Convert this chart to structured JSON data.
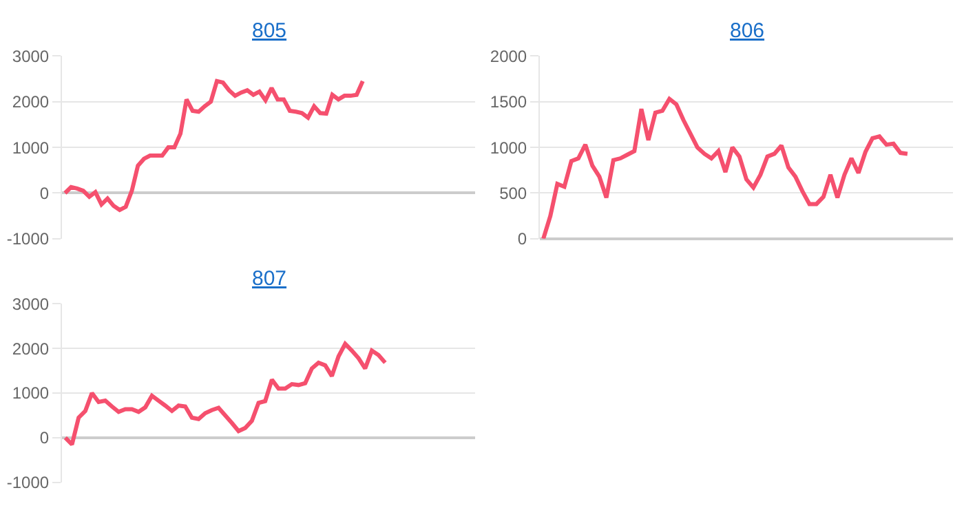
{
  "chart_data": [
    {
      "type": "line",
      "title": "805",
      "categories": [
        null,
        null,
        null,
        null,
        null,
        null,
        null,
        null,
        null,
        null,
        null,
        null,
        null,
        null,
        null,
        null,
        null,
        null,
        null,
        null,
        null,
        null,
        null,
        null,
        null,
        null,
        null,
        null,
        null,
        null,
        null,
        null,
        null,
        null,
        null,
        null,
        null,
        null,
        null,
        null,
        null,
        null,
        null,
        null,
        null,
        null,
        null,
        null,
        null,
        null,
        null,
        null,
        null,
        null,
        null,
        null,
        null,
        null,
        null,
        null,
        null,
        null,
        null,
        null,
        null,
        null,
        null,
        null
      ],
      "series": [
        {
          "color": "#f5506e",
          "values": [
            0,
            130,
            100,
            50,
            -80,
            20,
            -250,
            -120,
            -280,
            -370,
            -300,
            50,
            600,
            750,
            820,
            820,
            820,
            1000,
            1000,
            1300,
            2050,
            1800,
            1780,
            1900,
            2000,
            2450,
            2420,
            2250,
            2130,
            2200,
            2250,
            2150,
            2220,
            2030,
            2300,
            2050,
            2050,
            1800,
            1780,
            1750,
            1650,
            1900,
            1750,
            1740,
            2150,
            2050,
            2130,
            2130,
            2150,
            2450,
            null,
            null,
            null,
            null,
            null,
            null,
            null,
            null,
            null,
            null,
            null,
            null,
            null,
            null,
            null,
            null,
            null,
            null
          ]
        }
      ],
      "ylim": [
        -1000,
        3000
      ],
      "yticks": [
        -1000,
        0,
        1000,
        2000,
        3000
      ],
      "grid": "y",
      "tick_labels": "y",
      "marker": "none"
    },
    {
      "type": "line",
      "title": "806",
      "categories": [
        null,
        null,
        null,
        null,
        null,
        null,
        null,
        null,
        null,
        null,
        null,
        null,
        null,
        null,
        null,
        null,
        null,
        null,
        null,
        null,
        null,
        null,
        null,
        null,
        null,
        null,
        null,
        null,
        null,
        null,
        null,
        null,
        null,
        null,
        null,
        null,
        null,
        null,
        null,
        null,
        null,
        null,
        null,
        null,
        null,
        null,
        null,
        null,
        null,
        null,
        null,
        null,
        null,
        null,
        null,
        null,
        null,
        null,
        null
      ],
      "series": [
        {
          "color": "#f5506e",
          "values": [
            0,
            250,
            600,
            570,
            850,
            880,
            1030,
            800,
            680,
            450,
            860,
            880,
            920,
            960,
            1420,
            1080,
            1380,
            1400,
            1530,
            1470,
            1300,
            1150,
            1000,
            930,
            880,
            960,
            730,
            1000,
            900,
            650,
            560,
            700,
            900,
            930,
            1020,
            780,
            680,
            520,
            380,
            380,
            460,
            700,
            450,
            700,
            880,
            720,
            950,
            1100,
            1120,
            1030,
            1040,
            940,
            930,
            null,
            null,
            null,
            null,
            null,
            null
          ]
        }
      ],
      "ylim": [
        0,
        2000
      ],
      "yticks": [
        0,
        500,
        1000,
        1500,
        2000
      ],
      "grid": "y",
      "tick_labels": "y",
      "marker": "none"
    },
    {
      "type": "line",
      "title": "807",
      "categories": [
        null,
        null,
        null,
        null,
        null,
        null,
        null,
        null,
        null,
        null,
        null,
        null,
        null,
        null,
        null,
        null,
        null,
        null,
        null,
        null,
        null,
        null,
        null,
        null,
        null,
        null,
        null,
        null,
        null,
        null,
        null,
        null,
        null,
        null,
        null,
        null,
        null,
        null,
        null,
        null,
        null,
        null,
        null,
        null,
        null,
        null,
        null,
        null,
        null,
        null,
        null,
        null,
        null,
        null,
        null,
        null,
        null,
        null,
        null,
        null,
        null,
        null
      ],
      "series": [
        {
          "color": "#f5506e",
          "values": [
            0,
            -150,
            450,
            600,
            1000,
            800,
            830,
            700,
            580,
            640,
            640,
            580,
            680,
            940,
            830,
            720,
            600,
            720,
            700,
            450,
            420,
            550,
            620,
            670,
            500,
            330,
            150,
            220,
            380,
            780,
            820,
            1300,
            1100,
            1100,
            1200,
            1180,
            1220,
            1550,
            1680,
            1620,
            1380,
            1820,
            2100,
            1950,
            1780,
            1550,
            1950,
            1850,
            1680,
            null,
            null,
            null,
            null,
            null,
            null,
            null,
            null,
            null,
            null,
            null,
            null,
            null
          ]
        }
      ],
      "ylim": [
        -1000,
        3000
      ],
      "yticks": [
        -1000,
        0,
        1000,
        2000,
        3000
      ],
      "grid": "y",
      "tick_labels": "y",
      "marker": "none"
    }
  ]
}
